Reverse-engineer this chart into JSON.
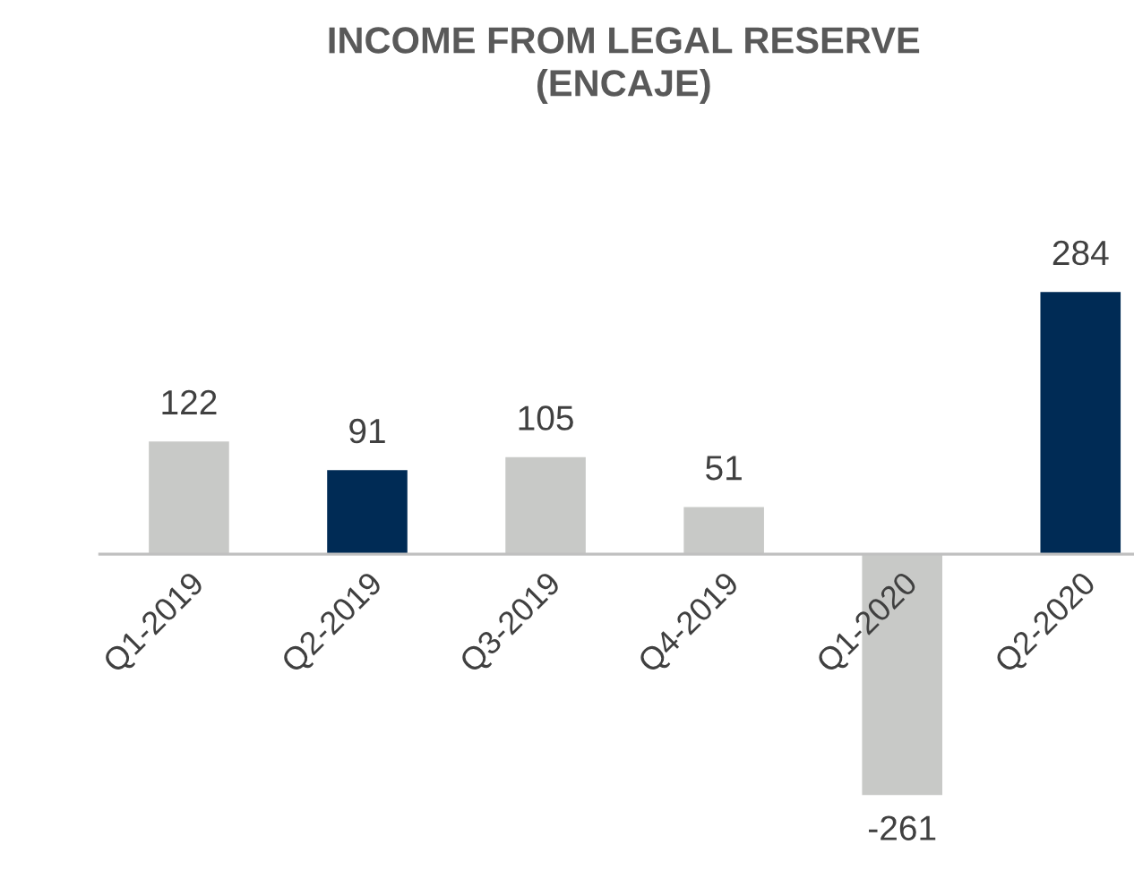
{
  "chart_data": {
    "type": "bar",
    "title": "INCOME FROM LEGAL RESERVE\n(ENCAJE)",
    "categories": [
      "Q1-2019",
      "Q2-2019",
      "Q3-2019",
      "Q4-2019",
      "Q1-2020",
      "Q2-2020"
    ],
    "values": [
      122,
      91,
      105,
      51,
      -261,
      284
    ],
    "colors": [
      "#c8c9c7",
      "#002b55",
      "#c8c9c7",
      "#c8c9c7",
      "#c8c9c7",
      "#002b55"
    ],
    "data_labels": true,
    "tick_labels": "x",
    "grid": false,
    "legend": false
  }
}
